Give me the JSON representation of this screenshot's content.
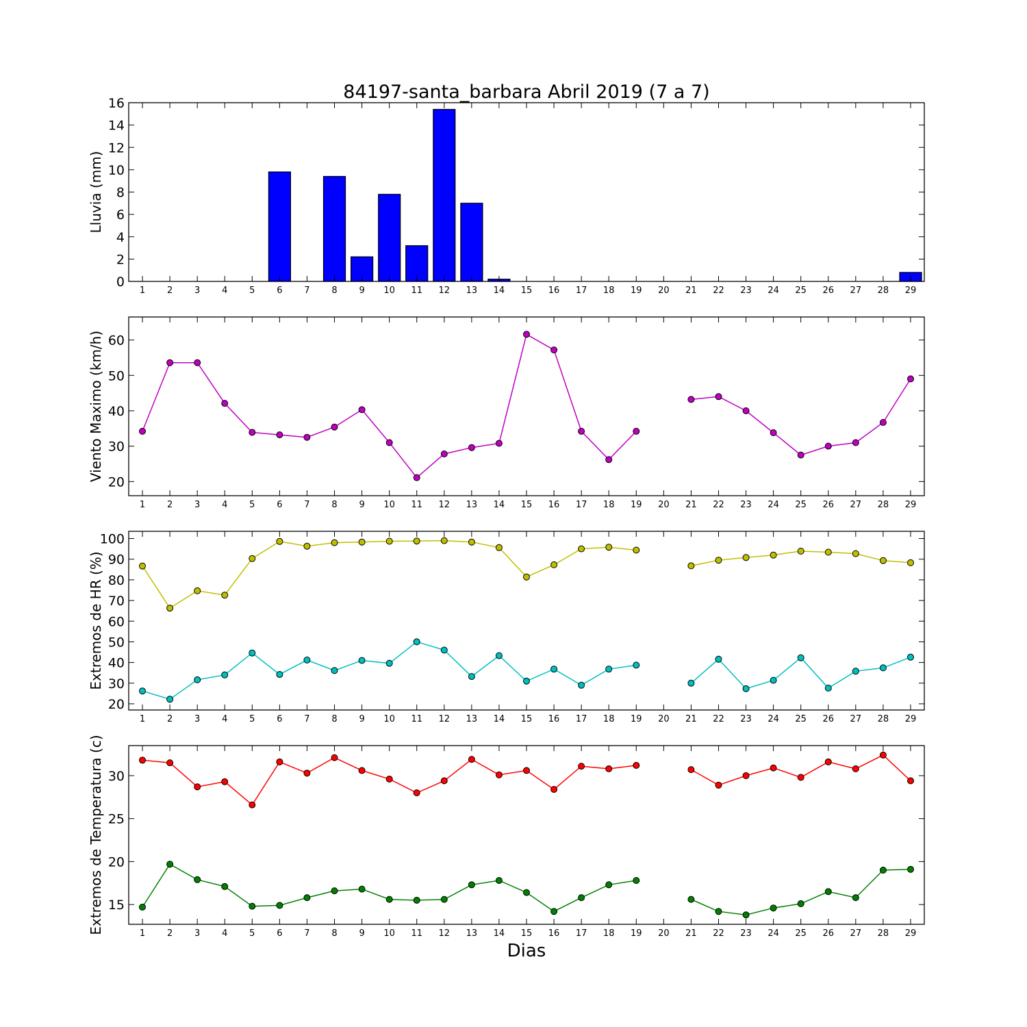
{
  "figure": {
    "title": "84197-santa_barbara Abril 2019  (7 a 7)",
    "xlabel": "Dias"
  },
  "colors": {
    "rain": "#0000ff",
    "wind": "#bf00bf",
    "hr_max": "#bfbf00",
    "hr_min": "#00bfbf",
    "temp_max": "#ff0000",
    "temp_min": "#008000"
  },
  "chart_data": [
    {
      "type": "bar",
      "ylabel": "Lluvia (mm)",
      "ylim": [
        0,
        16
      ],
      "yticks": [
        0,
        2,
        4,
        6,
        8,
        10,
        12,
        14,
        16
      ],
      "categories": [
        1,
        2,
        3,
        4,
        5,
        6,
        7,
        8,
        9,
        10,
        11,
        12,
        13,
        14,
        15,
        16,
        17,
        18,
        19,
        20,
        21,
        22,
        23,
        24,
        25,
        26,
        27,
        28,
        29
      ],
      "values": [
        0,
        0,
        0,
        0,
        0,
        9.8,
        0,
        9.4,
        2.2,
        7.8,
        3.2,
        15.4,
        7.0,
        0.2,
        0,
        0,
        0,
        0,
        0,
        0,
        0,
        0,
        0,
        0,
        0,
        0,
        0,
        0,
        0.8
      ],
      "grid": false
    },
    {
      "type": "line",
      "ylabel": "Viento Maximo (km/h)",
      "ylim": [
        16,
        66.5
      ],
      "yticks": [
        20,
        30,
        40,
        50,
        60
      ],
      "x": [
        1,
        2,
        3,
        4,
        5,
        6,
        7,
        8,
        9,
        10,
        11,
        12,
        13,
        14,
        15,
        16,
        17,
        18,
        19,
        20,
        21,
        22,
        23,
        24,
        25,
        26,
        27,
        28,
        29
      ],
      "series": [
        {
          "values": [
            34.2,
            53.6,
            53.6,
            42.1,
            33.9,
            33.2,
            32.5,
            35.4,
            40.3,
            31.0,
            21.1,
            27.8,
            29.6,
            30.8,
            61.6,
            57.2,
            34.2,
            26.2,
            34.2,
            null,
            43.2,
            44.0,
            40.0,
            33.8,
            27.5,
            30.0,
            31.0,
            36.7,
            49.0
          ]
        }
      ],
      "grid": false
    },
    {
      "type": "line",
      "ylabel": "Extremos de HR (%)",
      "ylim": [
        17,
        103.5
      ],
      "yticks": [
        20,
        30,
        40,
        50,
        60,
        70,
        80,
        90,
        100
      ],
      "x": [
        1,
        2,
        3,
        4,
        5,
        6,
        7,
        8,
        9,
        10,
        11,
        12,
        13,
        14,
        15,
        16,
        17,
        18,
        19,
        20,
        21,
        22,
        23,
        24,
        25,
        26,
        27,
        28,
        29
      ],
      "series": [
        {
          "values": [
            86.7,
            66.3,
            74.7,
            72.6,
            90.3,
            98.6,
            96.3,
            98.0,
            98.3,
            98.7,
            98.8,
            99.0,
            98.3,
            95.6,
            81.4,
            87.3,
            95.0,
            95.8,
            94.4,
            null,
            86.8,
            89.5,
            90.8,
            92.0,
            93.9,
            93.4,
            92.7,
            89.3,
            88.3
          ]
        },
        {
          "values": [
            26.2,
            22.2,
            31.6,
            34.0,
            44.6,
            34.2,
            41.2,
            36.1,
            41.0,
            39.6,
            50.0,
            46.0,
            33.2,
            43.3,
            31.0,
            36.8,
            29.0,
            36.8,
            38.7,
            null,
            30.0,
            41.6,
            27.3,
            31.4,
            42.3,
            27.6,
            35.8,
            37.4,
            42.6
          ]
        }
      ],
      "grid": false
    },
    {
      "type": "line",
      "ylabel": "Extremos de Temperatura (c)",
      "ylim": [
        12.7,
        33.5
      ],
      "yticks": [
        15,
        20,
        25,
        30
      ],
      "x": [
        1,
        2,
        3,
        4,
        5,
        6,
        7,
        8,
        9,
        10,
        11,
        12,
        13,
        14,
        15,
        16,
        17,
        18,
        19,
        20,
        21,
        22,
        23,
        24,
        25,
        26,
        27,
        28,
        29
      ],
      "series": [
        {
          "values": [
            31.8,
            31.5,
            28.7,
            29.3,
            26.6,
            31.6,
            30.3,
            32.1,
            30.6,
            29.6,
            28.0,
            29.4,
            31.9,
            30.1,
            30.6,
            28.4,
            31.1,
            30.8,
            31.2,
            null,
            30.7,
            28.9,
            30.0,
            30.9,
            29.8,
            31.6,
            30.8,
            32.4,
            29.4
          ]
        },
        {
          "values": [
            14.7,
            19.7,
            17.9,
            17.1,
            14.8,
            14.9,
            15.8,
            16.6,
            16.8,
            15.6,
            15.5,
            15.6,
            17.3,
            17.8,
            16.4,
            14.2,
            15.8,
            17.3,
            17.8,
            null,
            15.6,
            14.2,
            13.8,
            14.6,
            15.1,
            16.5,
            15.8,
            19.0,
            19.1
          ]
        }
      ],
      "grid": false
    }
  ]
}
